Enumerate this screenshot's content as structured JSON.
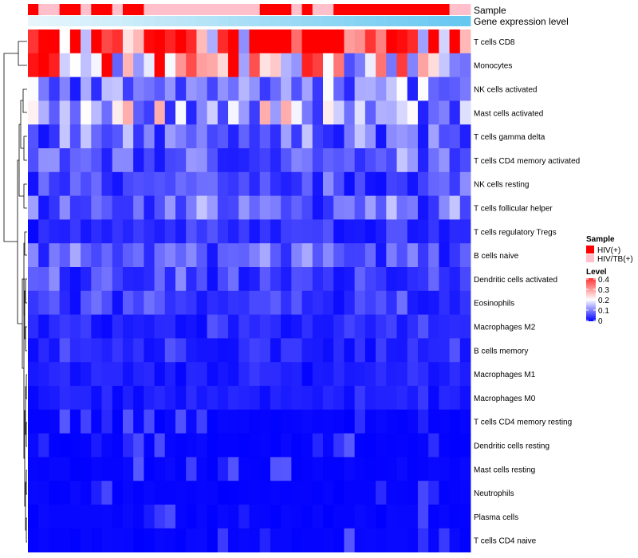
{
  "chart_data": {
    "type": "heatmap",
    "title": "",
    "annotation_rows": [
      "Sample",
      "Gene expression level"
    ],
    "rows": [
      "T cells CD8",
      "Monocytes",
      "NK cells activated",
      "Mast cells activated",
      "T cells gamma delta",
      "T cells CD4 memory activated",
      "NK cells resting",
      "T cells follicular helper",
      "T cells regulatory  Tregs",
      "B cells naive",
      "Dendritic cells activated",
      "Eosinophils",
      "Macrophages M2",
      "B cells memory",
      "Macrophages M1",
      "Macrophages M0",
      "T cells CD4 memory resting",
      "Dendritic cells resting",
      "Mast cells resting",
      "Neutrophils",
      "Plasma cells",
      "T cells CD4 naive"
    ],
    "n_columns": 42,
    "row_means": [
      0.34,
      0.22,
      0.09,
      0.12,
      0.07,
      0.07,
      0.05,
      0.07,
      0.03,
      0.06,
      0.05,
      0.04,
      0.03,
      0.03,
      0.02,
      0.02,
      0.01,
      0.01,
      0.005,
      0.005,
      0.01,
      0.01
    ],
    "sample_groups": {
      "categories": [
        "HIV(+)",
        "HIV/TB(+)"
      ],
      "colors": [
        "#ff0000",
        "#ffc0cb"
      ]
    },
    "sample_annotation": [
      0,
      1,
      1,
      0,
      0,
      1,
      0,
      0,
      1,
      0,
      0,
      1,
      1,
      1,
      1,
      1,
      1,
      1,
      1,
      1,
      1,
      1,
      0,
      0,
      0,
      1,
      0,
      1,
      1,
      0,
      0,
      0,
      0,
      0,
      0,
      0,
      0,
      0,
      0,
      0,
      1,
      1
    ],
    "expression_gradient": {
      "from": "#e8f6fc",
      "to": "#66c7f0"
    },
    "legend": {
      "sample_title": "Sample",
      "level_title": "Level",
      "level_ticks": [
        "0.4",
        "0.3",
        "0.2",
        "0.1",
        "0"
      ],
      "level_range": [
        0,
        0.4
      ]
    },
    "colorscale": {
      "low": "#0000ff",
      "mid": "#ffffff",
      "high": "#ff0000",
      "midpoint": 0.2
    }
  }
}
